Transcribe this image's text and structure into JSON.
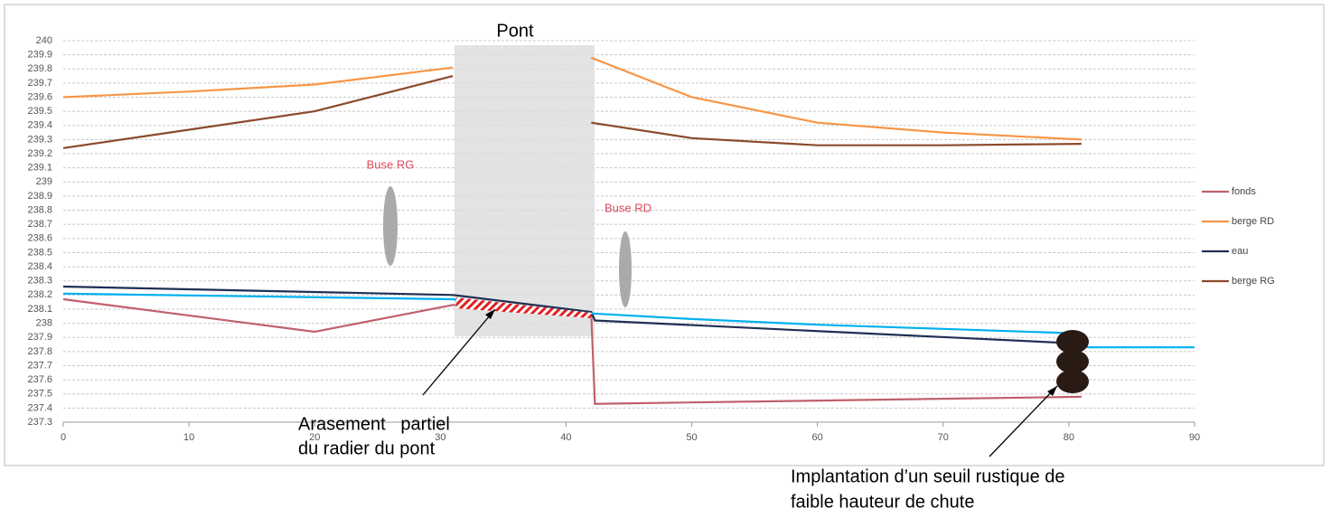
{
  "chart_data": {
    "type": "line",
    "xlim": [
      0,
      90
    ],
    "xticks": [
      0,
      10,
      20,
      30,
      40,
      50,
      60,
      70,
      80,
      90
    ],
    "ylim": [
      237.3,
      240
    ],
    "yticks": [
      237.3,
      237.4,
      237.5,
      237.6,
      237.7,
      237.8,
      237.9,
      238,
      238.1,
      238.2,
      238.3,
      238.4,
      238.5,
      238.6,
      238.7,
      238.8,
      238.9,
      239,
      239.1,
      239.2,
      239.3,
      239.4,
      239.5,
      239.6,
      239.7,
      239.8,
      239.9,
      240
    ],
    "grid": true,
    "legend": "right",
    "series": [
      {
        "name": "fonds",
        "color": "#c0606a",
        "x": [
          0,
          20,
          31,
          42,
          42.3,
          81
        ],
        "values": [
          238.17,
          237.94,
          238.13,
          238.07,
          237.43,
          237.48
        ]
      },
      {
        "name": "berge RD",
        "color": "#f79646",
        "x": [
          0,
          10,
          20,
          31,
          36,
          42,
          50,
          60,
          70,
          81
        ],
        "values": [
          239.6,
          239.64,
          239.69,
          239.81,
          null,
          239.88,
          239.6,
          239.42,
          239.35,
          239.3
        ]
      },
      {
        "name": "eau",
        "color": "#1f3055",
        "x": [
          0,
          31,
          42,
          42.3,
          80
        ],
        "values": [
          238.26,
          238.2,
          238.08,
          238.02,
          237.86
        ]
      },
      {
        "name": "berge RG",
        "color": "#8b4a2b",
        "x": [
          0,
          10,
          20,
          31,
          36,
          42,
          50,
          60,
          70,
          81
        ],
        "values": [
          239.24,
          239.37,
          239.5,
          239.75,
          null,
          239.42,
          239.31,
          239.26,
          239.26,
          239.27
        ]
      },
      {
        "color": "#00b0f0",
        "x": [
          0,
          31,
          42,
          50,
          60,
          70,
          80,
          81.5,
          90
        ],
        "values": [
          238.21,
          238.17,
          238.07,
          238.03,
          237.99,
          237.96,
          237.93,
          237.83,
          237.83
        ]
      }
    ],
    "annotations": {
      "pont": "Pont",
      "buse_rg": "Buse RG",
      "buse_rd": "Buse RD",
      "arasement": [
        "Arasement   partiel",
        "du radier du pont"
      ],
      "seuil": [
        "Implantation d’un seuil rustique de",
        "faible hauteur de chute"
      ]
    }
  }
}
